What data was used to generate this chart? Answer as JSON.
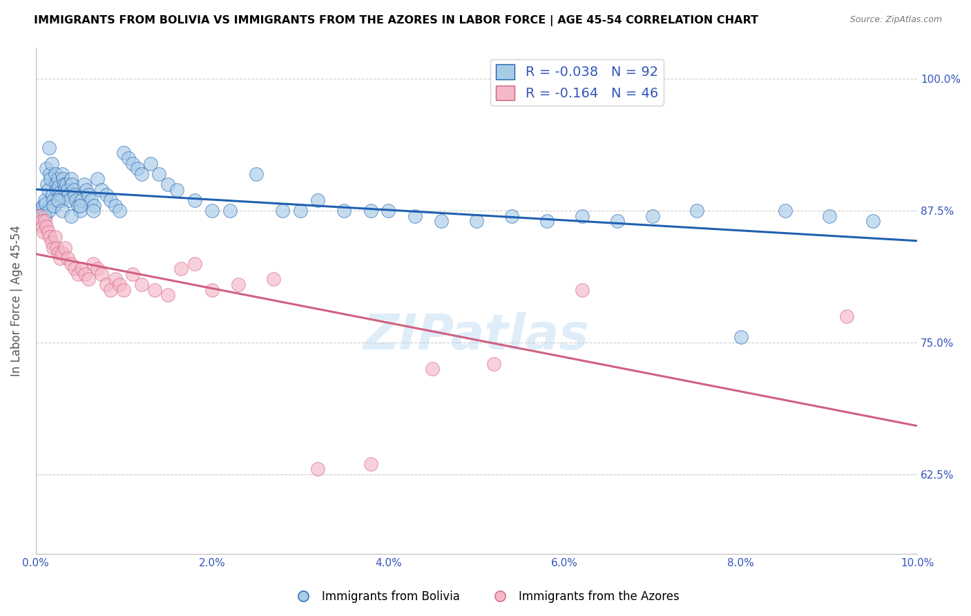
{
  "title": "IMMIGRANTS FROM BOLIVIA VS IMMIGRANTS FROM THE AZORES IN LABOR FORCE | AGE 45-54 CORRELATION CHART",
  "source": "Source: ZipAtlas.com",
  "ylabel": "In Labor Force | Age 45-54",
  "xlim": [
    0.0,
    10.0
  ],
  "ylim": [
    55.0,
    103.0
  ],
  "yticks": [
    62.5,
    75.0,
    87.5,
    100.0
  ],
  "xticks": [
    0.0,
    2.0,
    4.0,
    6.0,
    8.0,
    10.0
  ],
  "xtick_labels": [
    "0.0%",
    "2.0%",
    "4.0%",
    "6.0%",
    "8.0%",
    "10.0%"
  ],
  "ytick_labels": [
    "62.5%",
    "75.0%",
    "87.5%",
    "100.0%"
  ],
  "bolivia_color": "#a8cce8",
  "azores_color": "#f5b8c8",
  "bolivia_line_color": "#2060b0",
  "azores_line_color": "#d06080",
  "bolivia_R": -0.038,
  "bolivia_N": 92,
  "azores_R": -0.164,
  "azores_N": 46,
  "legend_label_bolivia": "Immigrants from Bolivia",
  "legend_label_azores": "Immigrants from the Azores",
  "bolivia_x": [
    0.05,
    0.07,
    0.08,
    0.09,
    0.1,
    0.1,
    0.11,
    0.12,
    0.13,
    0.14,
    0.15,
    0.16,
    0.17,
    0.18,
    0.19,
    0.2,
    0.21,
    0.22,
    0.23,
    0.24,
    0.25,
    0.26,
    0.27,
    0.28,
    0.29,
    0.3,
    0.31,
    0.32,
    0.33,
    0.35,
    0.36,
    0.37,
    0.38,
    0.4,
    0.41,
    0.43,
    0.44,
    0.46,
    0.48,
    0.5,
    0.52,
    0.55,
    0.57,
    0.6,
    0.63,
    0.66,
    0.7,
    0.75,
    0.8,
    0.85,
    0.9,
    0.95,
    1.0,
    1.05,
    1.1,
    1.15,
    1.2,
    1.3,
    1.4,
    1.5,
    1.6,
    1.8,
    2.0,
    2.2,
    2.5,
    2.8,
    3.0,
    3.2,
    3.5,
    3.8,
    4.0,
    4.3,
    4.6,
    5.0,
    5.4,
    5.8,
    6.2,
    6.6,
    7.0,
    7.5,
    8.0,
    8.5,
    9.0,
    9.5,
    0.1,
    0.15,
    0.2,
    0.25,
    0.3,
    0.4,
    0.5,
    0.65
  ],
  "bolivia_y": [
    87.5,
    87.8,
    88.0,
    87.2,
    88.5,
    87.0,
    88.2,
    91.5,
    90.0,
    89.5,
    93.5,
    91.0,
    90.5,
    92.0,
    89.0,
    88.5,
    88.0,
    91.0,
    90.0,
    89.5,
    90.5,
    89.8,
    89.2,
    88.8,
    88.5,
    91.0,
    90.5,
    90.0,
    89.5,
    90.0,
    89.5,
    89.0,
    88.5,
    90.5,
    90.0,
    89.5,
    89.0,
    88.5,
    88.0,
    87.5,
    88.5,
    90.0,
    89.5,
    89.0,
    88.5,
    88.0,
    90.5,
    89.5,
    89.0,
    88.5,
    88.0,
    87.5,
    93.0,
    92.5,
    92.0,
    91.5,
    91.0,
    92.0,
    91.0,
    90.0,
    89.5,
    88.5,
    87.5,
    87.5,
    91.0,
    87.5,
    87.5,
    88.5,
    87.5,
    87.5,
    87.5,
    87.0,
    86.5,
    86.5,
    87.0,
    86.5,
    87.0,
    86.5,
    87.0,
    87.5,
    75.5,
    87.5,
    87.0,
    86.5,
    87.0,
    87.5,
    88.0,
    88.5,
    87.5,
    87.0,
    88.0,
    87.5
  ],
  "azores_x": [
    0.05,
    0.07,
    0.08,
    0.09,
    0.1,
    0.12,
    0.14,
    0.16,
    0.18,
    0.2,
    0.22,
    0.24,
    0.26,
    0.28,
    0.3,
    0.33,
    0.36,
    0.4,
    0.44,
    0.48,
    0.52,
    0.56,
    0.6,
    0.65,
    0.7,
    0.75,
    0.8,
    0.85,
    0.9,
    0.95,
    1.0,
    1.1,
    1.2,
    1.35,
    1.5,
    1.65,
    1.8,
    2.0,
    2.3,
    2.7,
    3.2,
    3.8,
    4.5,
    5.2,
    6.2,
    9.2
  ],
  "azores_y": [
    87.0,
    86.5,
    86.0,
    85.5,
    86.5,
    86.0,
    85.5,
    85.0,
    84.5,
    84.0,
    85.0,
    84.0,
    83.5,
    83.0,
    83.5,
    84.0,
    83.0,
    82.5,
    82.0,
    81.5,
    82.0,
    81.5,
    81.0,
    82.5,
    82.0,
    81.5,
    80.5,
    80.0,
    81.0,
    80.5,
    80.0,
    81.5,
    80.5,
    80.0,
    79.5,
    82.0,
    82.5,
    80.0,
    80.5,
    81.0,
    63.0,
    63.5,
    72.5,
    73.0,
    80.0,
    77.5
  ]
}
